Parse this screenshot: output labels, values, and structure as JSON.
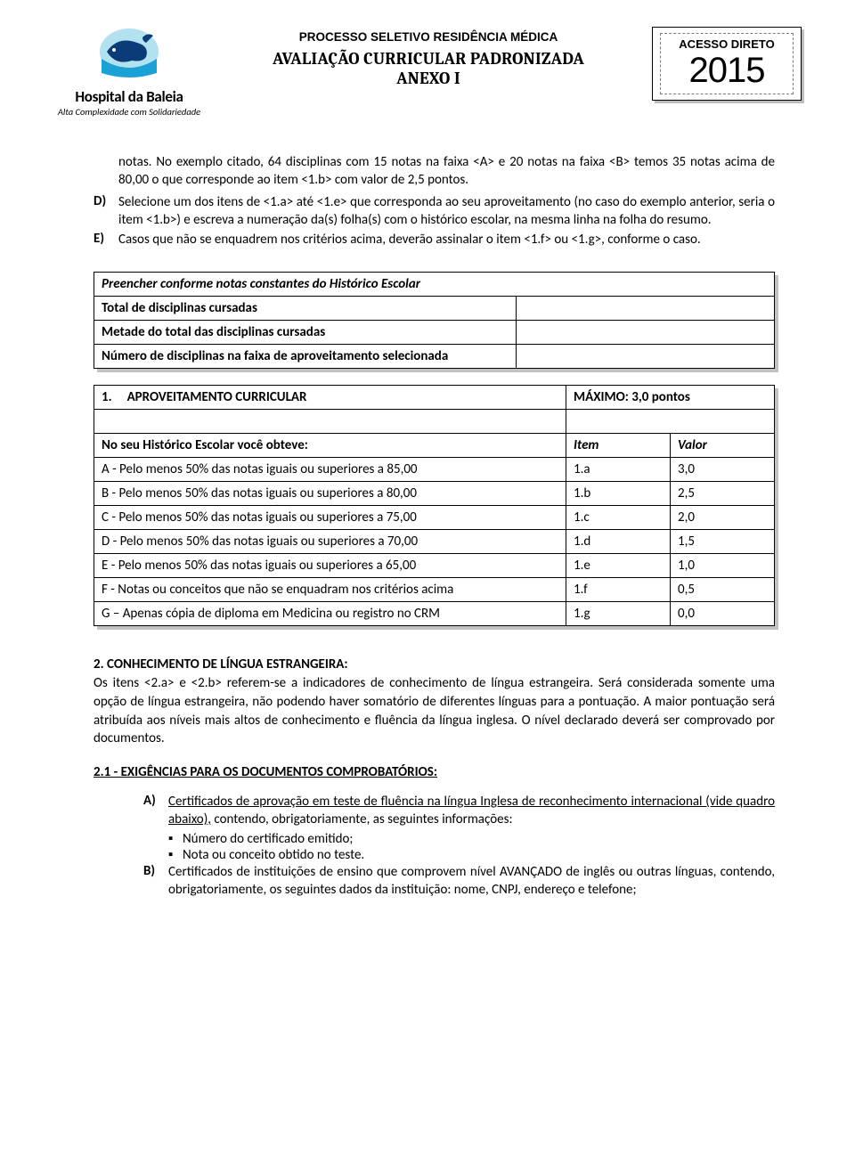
{
  "header": {
    "logo_name": "Hospital da Baleia",
    "logo_tagline": "Alta Complexidade com Solidariedade",
    "small_title": "PROCESSO SELETIVO RESIDÊNCIA MÉDICA",
    "main_title_line1": "AVALIAÇÃO CURRICULAR PADRONIZADA",
    "main_title_line2": "ANEXO I",
    "year_box_label": "ACESSO DIRETO",
    "year_box_year": "2015"
  },
  "intro": {
    "lead_para": "notas. No exemplo citado, 64 disciplinas com 15 notas na faixa <A> e 20 notas na faixa <B> temos 35 notas acima de 80,00 o que corresponde ao item <1.b> com valor de 2,5 pontos.",
    "items": [
      {
        "marker": "D)",
        "text": "Selecione um dos itens de <1.a> até <1.e> que corresponda ao seu aproveitamento (no caso do exemplo anterior, seria o item <1.b>) e escreva a numeração da(s) folha(s) com o histórico escolar, na mesma linha na folha do resumo."
      },
      {
        "marker": "E)",
        "text": "Casos que não se enquadrem nos critérios acima, deverão assinalar o item <1.f> ou <1.g>, conforme o caso."
      }
    ]
  },
  "fill_table": {
    "title": "Preencher conforme notas constantes do Histórico Escolar",
    "rows": [
      "Total de disciplinas cursadas",
      "Metade do total das disciplinas cursadas",
      "Número de disciplinas na faixa de aproveitamento selecionada"
    ]
  },
  "main_table": {
    "section_no": "1.",
    "section_title": "APROVEITAMENTO CURRICULAR",
    "max_label": "MÁXIMO: 3,0 pontos",
    "col_header_desc": "No seu Histórico Escolar você obteve:",
    "col_header_item": "Item",
    "col_header_valor": "Valor",
    "rows": [
      {
        "desc": "A - Pelo menos 50% das notas iguais ou superiores a 85,00",
        "item": "1.a",
        "valor": "3,0"
      },
      {
        "desc": "B - Pelo menos 50% das notas iguais ou superiores a 80,00",
        "item": "1.b",
        "valor": "2,5"
      },
      {
        "desc": "C - Pelo menos 50% das notas iguais ou superiores a 75,00",
        "item": "1.c",
        "valor": "2,0"
      },
      {
        "desc": "D - Pelo menos 50% das notas iguais ou superiores a 70,00",
        "item": "1.d",
        "valor": "1,5"
      },
      {
        "desc": "E - Pelo menos 50% das notas iguais ou superiores a 65,00",
        "item": "1.e",
        "valor": "1,0"
      },
      {
        "desc": "F - Notas ou conceitos que não se enquadram nos critérios acima",
        "item": "1.f",
        "valor": "0,5"
      },
      {
        "desc": "G – Apenas cópia de diploma em Medicina ou registro no CRM",
        "item": "1.g",
        "valor": "0,0"
      }
    ]
  },
  "section2": {
    "title": "2. CONHECIMENTO DE LÍNGUA ESTRANGEIRA:",
    "body": "Os itens <2.a> e <2.b> referem-se a indicadores de conhecimento de língua estrangeira. Será considerada somente uma opção de língua estrangeira, não podendo haver somatório de diferentes línguas para a pontuação. A maior pontuação será atribuída aos níveis mais altos de conhecimento e fluência da língua inglesa. O nível declarado deverá ser comprovado por documentos.",
    "sub_title": "2.1 - EXIGÊNCIAS PARA OS DOCUMENTOS COMPROBATÓRIOS:",
    "items": [
      {
        "marker": "A)",
        "lead_underlined": "Certificados de aprovação em teste de fluência na língua Inglesa de reconhecimento internacional (vide quadro abaixo),",
        "lead_rest": " contendo, obrigatoriamente, as seguintes informações:",
        "bullets": [
          "Número do certificado emitido;",
          "Nota ou conceito obtido no teste."
        ]
      },
      {
        "marker": "B)",
        "lead_underlined": "",
        "lead_rest": "Certificados de instituições de ensino que comprovem nível AVANÇADO de inglês ou outras línguas, contendo, obrigatoriamente, os seguintes dados da instituição: nome, CNPJ, endereço e telefone;",
        "bullets": []
      }
    ]
  },
  "style": {
    "page_bg": "#ffffff",
    "text_color": "#000000",
    "shadow_color": "#c2c2c2",
    "logo_colors": {
      "sky": "#b2e2f0",
      "whale": "#0b3c78",
      "water": "#1aa1d6"
    }
  }
}
